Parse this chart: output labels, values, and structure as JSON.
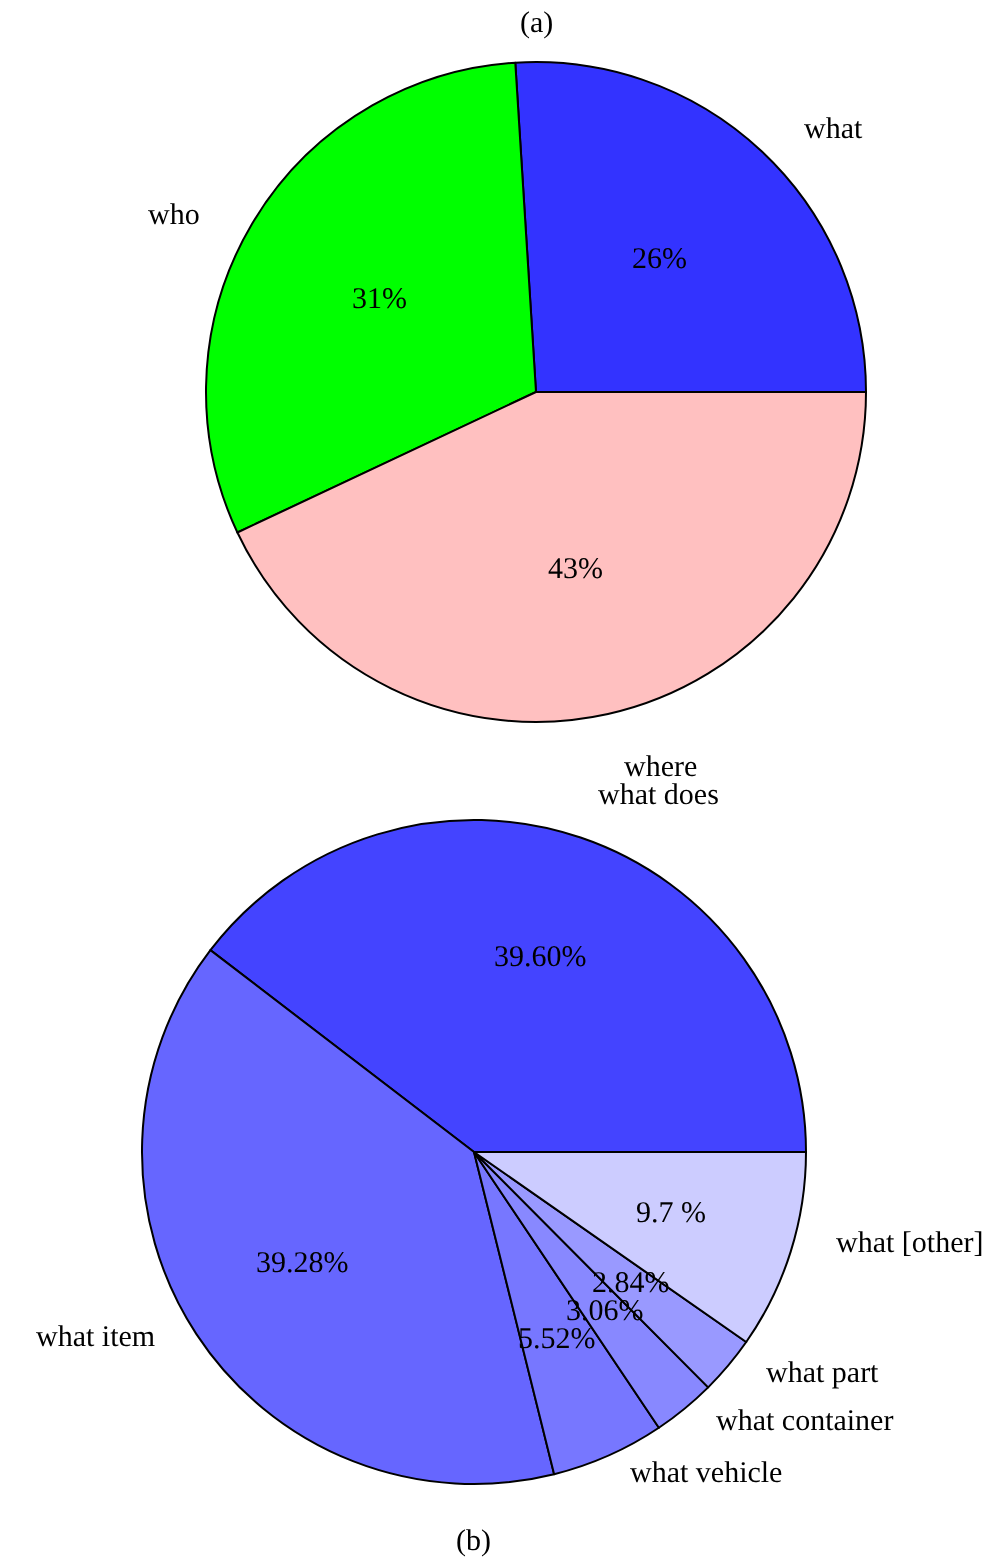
{
  "chart_data": [
    {
      "type": "pie",
      "title": "(a)",
      "categories": [
        "what",
        "who",
        "where"
      ],
      "values": [
        26,
        31,
        43
      ],
      "colors": [
        "#3333ff",
        "#00ff00",
        "#ffc0c0"
      ],
      "value_labels": [
        "26%",
        "31%",
        "43%"
      ]
    },
    {
      "type": "pie",
      "title": "(b)",
      "categories": [
        "what does",
        "what item",
        "what vehicle",
        "what container",
        "what part",
        "what [other]"
      ],
      "values": [
        39.6,
        39.28,
        5.52,
        3.06,
        2.84,
        9.7
      ],
      "colors": [
        "#4444ff",
        "#6666ff",
        "#7777ff",
        "#8888ff",
        "#9999ff",
        "#ccccff"
      ],
      "value_labels": [
        "39.60%",
        "39.28%",
        "5.52%",
        "3.06%",
        "2.84%",
        "9.7 %"
      ]
    }
  ]
}
